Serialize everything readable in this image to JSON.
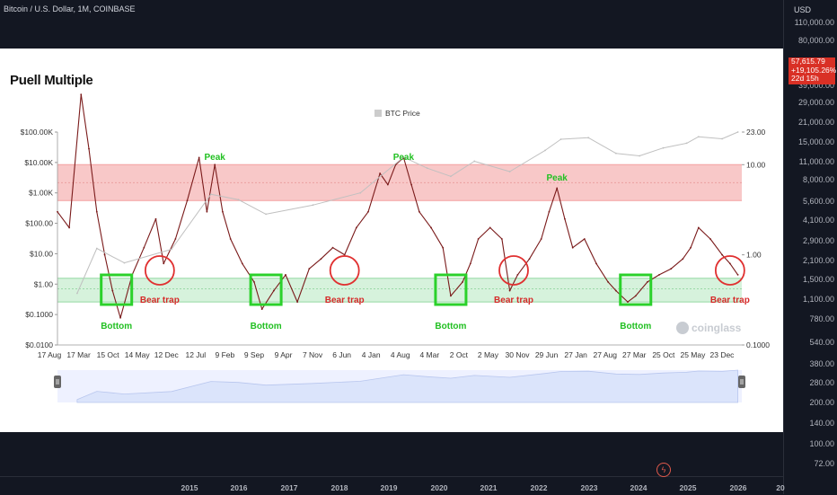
{
  "header": {
    "symbol": "Bitcoin / U.S. Dollar, 1M, COINBASE",
    "currency": "USD"
  },
  "price_tag": {
    "price": "57,615.79",
    "change": "+19,105.26%",
    "countdown": "22d 15h"
  },
  "price_axis": {
    "ticks": [
      "110,000.00",
      "80,000.00",
      "57,615.79",
      "39,000.00",
      "29,000.00",
      "21,000.00",
      "15,000.00",
      "11,000.00",
      "8,000.00",
      "5,600.00",
      "4,100.00",
      "2,900.00",
      "2,100.00",
      "1,500.00",
      "1,100.00",
      "780.00",
      "540.00",
      "380.00",
      "280.00",
      "200.00",
      "140.00",
      "100.00",
      "72.00"
    ]
  },
  "time_axis": {
    "years": [
      "2015",
      "2016",
      "2017",
      "2018",
      "2019",
      "2020",
      "2021",
      "2022",
      "2023",
      "2024",
      "2025",
      "2026",
      "20"
    ]
  },
  "card": {
    "title": "Puell Multiple",
    "legend": "BTC Price",
    "watermark": "coinglass"
  },
  "chart_data": {
    "type": "line",
    "title": "Puell Multiple",
    "legend": [
      "BTC Price"
    ],
    "x_tick_labels": [
      "17 Aug",
      "17 Mar",
      "15 Oct",
      "14 May",
      "12 Dec",
      "12 Jul",
      "9 Feb",
      "9 Sep",
      "9 Apr",
      "7 Nov",
      "6 Jun",
      "4 Jan",
      "4 Aug",
      "4 Mar",
      "2 Oct",
      "2 May",
      "30 Nov",
      "29 Jun",
      "27 Jan",
      "27 Aug",
      "27 Mar",
      "25 Oct",
      "25 May",
      "23 Dec"
    ],
    "left_axis": {
      "scale": "log",
      "tick_labels": [
        "$100.00K",
        "$10.00K",
        "$1.00K",
        "$100.00",
        "$10.00",
        "$1.00",
        "$0.1000",
        "$0.0100"
      ],
      "range": [
        0.01,
        100000
      ]
    },
    "right_axis": {
      "scale": "log",
      "tick_labels": [
        "23.00",
        "10.00",
        "1.00",
        "0.1000"
      ],
      "range": [
        0.1,
        23
      ]
    },
    "zones": [
      {
        "color": "#f8c8c8",
        "range": [
          4,
          10
        ]
      },
      {
        "color": "#d6f2dc",
        "range": [
          0.3,
          0.55
        ]
      }
    ],
    "annotations": {
      "peaks": [
        {
          "label": "Peak",
          "date": "2013-12"
        },
        {
          "label": "Peak",
          "date": "2017-12"
        },
        {
          "label": "Peak",
          "date": "2021-03"
        }
      ],
      "bottoms": [
        {
          "label": "Bottom",
          "date": "2011-11"
        },
        {
          "label": "Bottom",
          "date": "2015-01"
        },
        {
          "label": "Bottom",
          "date": "2018-12"
        },
        {
          "label": "Bottom",
          "date": "2022-11"
        }
      ],
      "bear_traps": [
        {
          "label": "Bear trap",
          "date": "2012-10"
        },
        {
          "label": "Bear trap",
          "date": "2016-09"
        },
        {
          "label": "Bear trap",
          "date": "2020-04"
        },
        {
          "label": "Bear trap",
          "date": "2024-11"
        }
      ]
    },
    "series": [
      {
        "color": "#7a1a1a",
        "x": [
          "2010-08",
          "2010-11",
          "2011-02",
          "2011-04",
          "2011-06",
          "2011-08",
          "2011-10",
          "2011-12",
          "2012-03",
          "2012-06",
          "2012-09",
          "2012-11",
          "2013-02",
          "2013-05",
          "2013-08",
          "2013-10",
          "2013-12",
          "2014-02",
          "2014-04",
          "2014-07",
          "2014-10",
          "2014-12",
          "2015-03",
          "2015-06",
          "2015-09",
          "2015-12",
          "2016-03",
          "2016-06",
          "2016-09",
          "2016-12",
          "2017-03",
          "2017-06",
          "2017-08",
          "2017-10",
          "2017-12",
          "2018-02",
          "2018-04",
          "2018-07",
          "2018-10",
          "2018-12",
          "2019-03",
          "2019-05",
          "2019-07",
          "2019-10",
          "2020-01",
          "2020-03",
          "2020-05",
          "2020-08",
          "2020-11",
          "2021-01",
          "2021-03",
          "2021-05",
          "2021-07",
          "2021-10",
          "2022-01",
          "2022-04",
          "2022-06",
          "2022-09",
          "2022-11",
          "2023-02",
          "2023-05",
          "2023-08",
          "2023-11",
          "2024-01",
          "2024-03",
          "2024-06",
          "2024-09",
          "2024-11",
          "2025-01"
        ],
        "y": [
          3,
          2,
          60,
          15,
          3,
          1,
          0.4,
          0.2,
          0.6,
          1.2,
          2.5,
          0.8,
          1.5,
          4,
          12,
          3,
          10,
          3,
          1.5,
          0.8,
          0.5,
          0.25,
          0.4,
          0.6,
          0.3,
          0.7,
          0.9,
          1.2,
          1,
          2,
          3,
          8,
          6,
          10,
          12,
          6,
          3,
          2,
          1.2,
          0.35,
          0.5,
          0.8,
          1.5,
          2,
          1.5,
          0.4,
          0.6,
          0.9,
          1.5,
          3,
          5.5,
          2.5,
          1.2,
          1.5,
          0.8,
          0.5,
          0.4,
          0.3,
          0.35,
          0.5,
          0.6,
          0.7,
          0.9,
          1.2,
          2,
          1.5,
          1,
          0.8,
          0.6
        ]
      },
      {
        "name": "BTC Price",
        "color": "#c0c0c0",
        "x": [
          "2011-01",
          "2011-06",
          "2012-01",
          "2013-01",
          "2013-11",
          "2014-06",
          "2015-01",
          "2016-01",
          "2017-01",
          "2017-12",
          "2018-06",
          "2018-12",
          "2019-06",
          "2020-03",
          "2020-12",
          "2021-04",
          "2021-11",
          "2022-06",
          "2022-12",
          "2023-06",
          "2023-12",
          "2024-03",
          "2024-09",
          "2025-01"
        ],
        "y": [
          0.5,
          15,
          5,
          14,
          900,
          600,
          200,
          400,
          1000,
          15000,
          6500,
          3500,
          11000,
          5000,
          25000,
          58000,
          65000,
          20000,
          16500,
          30000,
          43000,
          70000,
          60000,
          100000
        ]
      }
    ]
  }
}
